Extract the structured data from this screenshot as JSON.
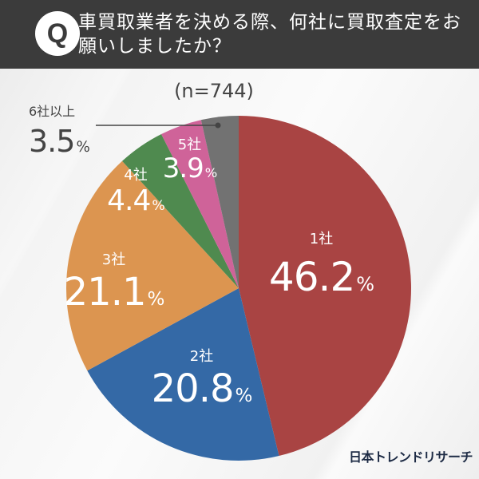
{
  "header": {
    "q_badge": "Q",
    "title": "車買取業者を決める際、何社に買取査定をお願いしましたか？"
  },
  "sample": "(n=744)",
  "logo": "日本トレンドリサーチ",
  "colors": {
    "header_bg": "#3b3b3b",
    "one": "#a94443",
    "two": "#3469a6",
    "three": "#dc9550",
    "four": "#4f8a4f",
    "five": "#cf6399",
    "six_plus": "#727272"
  },
  "labels": {
    "one": {
      "cat": "1社",
      "val": "46.2",
      "pct": "%"
    },
    "two": {
      "cat": "2社",
      "val": "20.8",
      "pct": "%"
    },
    "three": {
      "cat": "3社",
      "val": "21.1",
      "pct": "%"
    },
    "four": {
      "cat": "4社",
      "val": "4.4",
      "pct": "%"
    },
    "five": {
      "cat": "5社",
      "val": "3.9",
      "pct": "%"
    },
    "six_plus": {
      "cat": "6社以上",
      "val": "3.5",
      "pct": "%"
    }
  },
  "chart_data": {
    "type": "pie",
    "title": "車買取業者を決める際、何社に買取査定をお願いしましたか？",
    "subtitle": "(n=744)",
    "categories": [
      "1社",
      "2社",
      "3社",
      "4社",
      "5社",
      "6社以上"
    ],
    "values": [
      46.2,
      20.8,
      21.1,
      4.4,
      3.9,
      3.5
    ],
    "unit": "%",
    "start_angle": "12 o'clock",
    "direction": "clockwise",
    "colors": [
      "#a94443",
      "#3469a6",
      "#dc9550",
      "#4f8a4f",
      "#cf6399",
      "#727272"
    ],
    "source": "日本トレンドリサーチ"
  }
}
